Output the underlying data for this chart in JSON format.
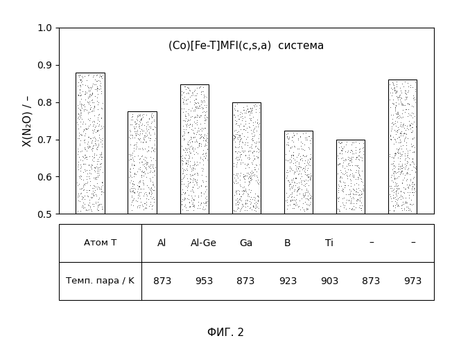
{
  "title": "(Co)[Fe-T]MFI(c,s,a)",
  "title_suffix": "  система",
  "ylabel": "X(N₂O) / –",
  "ylim": [
    0.5,
    1.0
  ],
  "yticks": [
    0.5,
    0.6,
    0.7,
    0.8,
    0.9,
    1.0
  ],
  "bar_values": [
    0.88,
    0.775,
    0.848,
    0.8,
    0.723,
    0.7,
    0.86
  ],
  "bar_positions": [
    1,
    2,
    3,
    4,
    5,
    6,
    7
  ],
  "bar_width": 0.55,
  "bar_edge_color": "#000000",
  "table_atom_label": "Атом T",
  "table_temp_label": "Темп. пара / K",
  "atom_T": [
    "Al",
    "Al-Ge",
    "Ga",
    "B",
    "Ti",
    "–",
    "–"
  ],
  "temp_K": [
    "873",
    "953",
    "873",
    "923",
    "903",
    "873",
    "973"
  ],
  "fig_caption": "ФИГ. 2",
  "background_color": "#ffffff"
}
